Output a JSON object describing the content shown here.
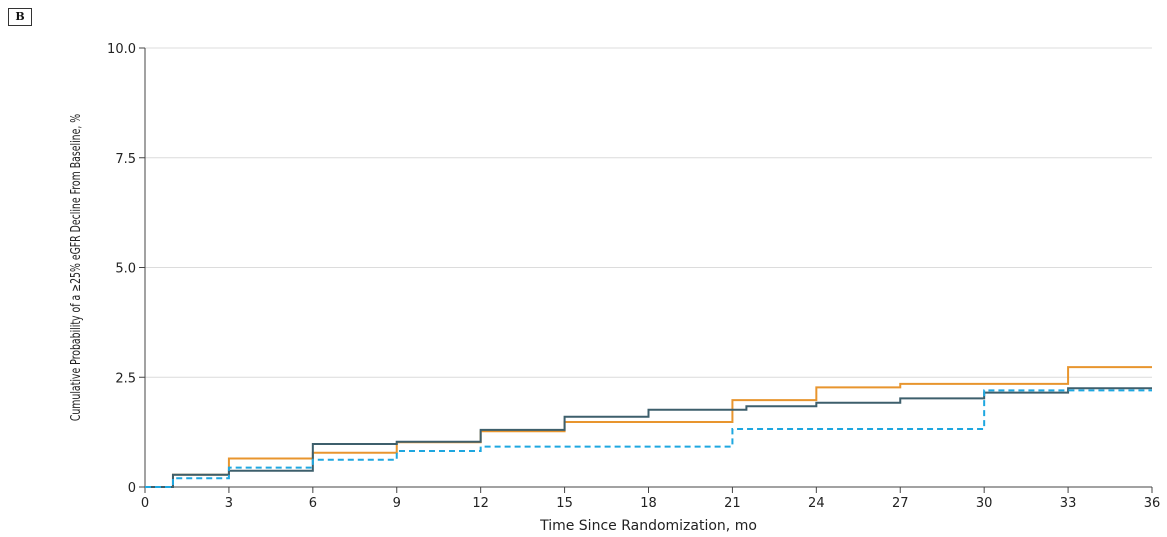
{
  "panel_label": "B",
  "chart_data": {
    "type": "line",
    "step": true,
    "title": "",
    "xlabel": "Time Since Randomization, mo",
    "ylabel": "Cumulative Probability of a ≥25% eGFR Decline From Baseline, %",
    "xlim": [
      0,
      36
    ],
    "ylim": [
      0,
      10
    ],
    "x_ticks": [
      0,
      3,
      6,
      9,
      12,
      15,
      18,
      21,
      24,
      27,
      30,
      33,
      36
    ],
    "y_ticks": [
      0,
      2.5,
      5.0,
      7.5,
      10.0
    ],
    "y_tick_labels": [
      "0",
      "2.5",
      "5.0",
      "7.5",
      "10.0"
    ],
    "grid": "horizontal",
    "legend": "none",
    "series": [
      {
        "color": "#e8952e",
        "dash": "solid",
        "points": [
          [
            0,
            0
          ],
          [
            1,
            0.28
          ],
          [
            3,
            0.65
          ],
          [
            6,
            0.78
          ],
          [
            9,
            1.02
          ],
          [
            12,
            1.27
          ],
          [
            15,
            1.48
          ],
          [
            21,
            1.98
          ],
          [
            24,
            2.27
          ],
          [
            27,
            2.35
          ],
          [
            33,
            2.73
          ],
          [
            36,
            2.73
          ]
        ]
      },
      {
        "color": "#3d5f6c",
        "dash": "solid",
        "points": [
          [
            0,
            0
          ],
          [
            1,
            0.28
          ],
          [
            3,
            0.37
          ],
          [
            6,
            0.98
          ],
          [
            9,
            1.03
          ],
          [
            12,
            1.3
          ],
          [
            15,
            1.6
          ],
          [
            18,
            1.76
          ],
          [
            21.5,
            1.84
          ],
          [
            24,
            1.92
          ],
          [
            27,
            2.02
          ],
          [
            30,
            2.15
          ],
          [
            33,
            2.25
          ],
          [
            36,
            2.25
          ]
        ]
      },
      {
        "color": "#1ea7e0",
        "dash": "dashed",
        "points": [
          [
            0,
            0
          ],
          [
            1,
            0.2
          ],
          [
            3,
            0.44
          ],
          [
            6,
            0.62
          ],
          [
            9,
            0.82
          ],
          [
            12,
            0.92
          ],
          [
            21,
            1.32
          ],
          [
            30,
            2.2
          ],
          [
            36,
            2.2
          ]
        ]
      }
    ]
  }
}
